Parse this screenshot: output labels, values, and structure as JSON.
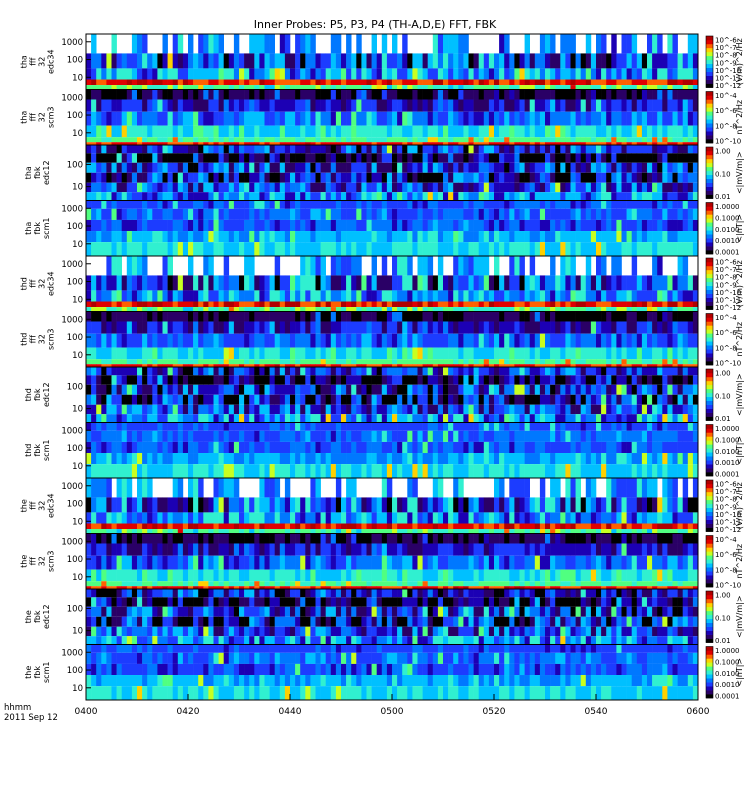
{
  "title": "Inner Probes: P5, P3, P4 (TH-A,D,E) FFT, FBK",
  "x_axis": {
    "tick_labels": [
      "0400",
      "0420",
      "0440",
      "0500",
      "0520",
      "0540",
      "0600"
    ],
    "footer_line1": "hhmm",
    "footer_line2": "2011 Sep 12"
  },
  "colors": {
    "colormap": [
      "#000000",
      "#2a0066",
      "#1c00b4",
      "#1c3cff",
      "#0078ff",
      "#00c0ff",
      "#30f0d0",
      "#50ff80",
      "#c8ff20",
      "#ffd000",
      "#ff6000",
      "#e00000",
      "#b00000"
    ]
  },
  "chart_data": {
    "type": "heatmap",
    "title": "Inner Probes: P5, P3, P4 (TH-A,D,E) FFT, FBK",
    "xlabel": "hhmm",
    "x_range": [
      "04:00",
      "06:00"
    ],
    "date": "2011 Sep 12",
    "y_scale": "log",
    "panels": [
      {
        "probe": "tha",
        "label_lines": [
          "tha",
          "fff",
          "32",
          "edc34"
        ],
        "y_ticks": [
          "1000",
          "100",
          "10"
        ],
        "z_label": "(V/m)^2/Hz",
        "z_ticks": [
          "10^-6",
          "10^-7",
          "10^-8",
          "10^-9",
          "10^-10",
          "10^-11",
          "10^-12"
        ],
        "kind": "fff_edc"
      },
      {
        "probe": "tha",
        "label_lines": [
          "tha",
          "fff",
          "32",
          "scm3"
        ],
        "y_ticks": [
          "1000",
          "100",
          "10"
        ],
        "z_label": "nT^2/Hz",
        "z_ticks": [
          "10^-4",
          "10^-6",
          "10^-8",
          "10^-10"
        ],
        "kind": "fff_scm"
      },
      {
        "probe": "tha",
        "label_lines": [
          "tha",
          "fbk",
          "edc12"
        ],
        "y_ticks": [
          "100",
          "10"
        ],
        "z_label": "<|mV/m|>",
        "z_ticks": [
          "1.00",
          "0.10",
          "0.01"
        ],
        "kind": "fbk_edc"
      },
      {
        "probe": "tha",
        "label_lines": [
          "tha",
          "fbk",
          "scm1"
        ],
        "y_ticks": [
          "1000",
          "100",
          "10"
        ],
        "z_label": "<|nT|>",
        "z_ticks": [
          "1.0000",
          "0.1000",
          "0.0100",
          "0.0010",
          "0.0001"
        ],
        "kind": "fbk_scm"
      },
      {
        "probe": "thd",
        "label_lines": [
          "thd",
          "fff",
          "32",
          "edc34"
        ],
        "y_ticks": [
          "1000",
          "100",
          "10"
        ],
        "z_label": "(V/m)^2/Hz",
        "z_ticks": [
          "10^-6",
          "10^-7",
          "10^-8",
          "10^-9",
          "10^-10",
          "10^-11",
          "10^-12"
        ],
        "kind": "fff_edc"
      },
      {
        "probe": "thd",
        "label_lines": [
          "thd",
          "fff",
          "32",
          "scm3"
        ],
        "y_ticks": [
          "1000",
          "100",
          "10"
        ],
        "z_label": "nT^2/Hz",
        "z_ticks": [
          "10^-4",
          "10^-6",
          "10^-8",
          "10^-10"
        ],
        "kind": "fff_scm"
      },
      {
        "probe": "thd",
        "label_lines": [
          "thd",
          "fbk",
          "edc12"
        ],
        "y_ticks": [
          "100",
          "10"
        ],
        "z_label": "<|mV/m|>",
        "z_ticks": [
          "1.00",
          "0.10",
          "0.01"
        ],
        "kind": "fbk_edc"
      },
      {
        "probe": "thd",
        "label_lines": [
          "thd",
          "fbk",
          "scm1"
        ],
        "y_ticks": [
          "1000",
          "100",
          "10"
        ],
        "z_label": "<|nT|>",
        "z_ticks": [
          "1.0000",
          "0.1000",
          "0.0100",
          "0.0010",
          "0.0001"
        ],
        "kind": "fbk_scm"
      },
      {
        "probe": "the",
        "label_lines": [
          "the",
          "fff",
          "32",
          "edc34"
        ],
        "y_ticks": [
          "1000",
          "100",
          "10"
        ],
        "z_label": "(V/m)^2/Hz",
        "z_ticks": [
          "10^-6",
          "10^-7",
          "10^-8",
          "10^-9",
          "10^-10",
          "10^-11",
          "10^-12"
        ],
        "kind": "fff_edc"
      },
      {
        "probe": "the",
        "label_lines": [
          "the",
          "fff",
          "32",
          "scm3"
        ],
        "y_ticks": [
          "1000",
          "100",
          "10"
        ],
        "z_label": "nT^2/Hz",
        "z_ticks": [
          "10^-4",
          "10^-6",
          "10^-8",
          "10^-10"
        ],
        "kind": "fff_scm"
      },
      {
        "probe": "the",
        "label_lines": [
          "the",
          "fbk",
          "edc12"
        ],
        "y_ticks": [
          "100",
          "10"
        ],
        "z_label": "<|mV/m|>",
        "z_ticks": [
          "1.00",
          "0.10",
          "0.01"
        ],
        "kind": "fbk_edc"
      },
      {
        "probe": "the",
        "label_lines": [
          "the",
          "fbk",
          "scm1"
        ],
        "y_ticks": [
          "1000",
          "100",
          "10"
        ],
        "z_label": "<|nT|>",
        "z_ticks": [
          "1.0000",
          "0.1000",
          "0.0100",
          "0.0010",
          "0.0001"
        ],
        "kind": "fbk_scm"
      }
    ]
  }
}
